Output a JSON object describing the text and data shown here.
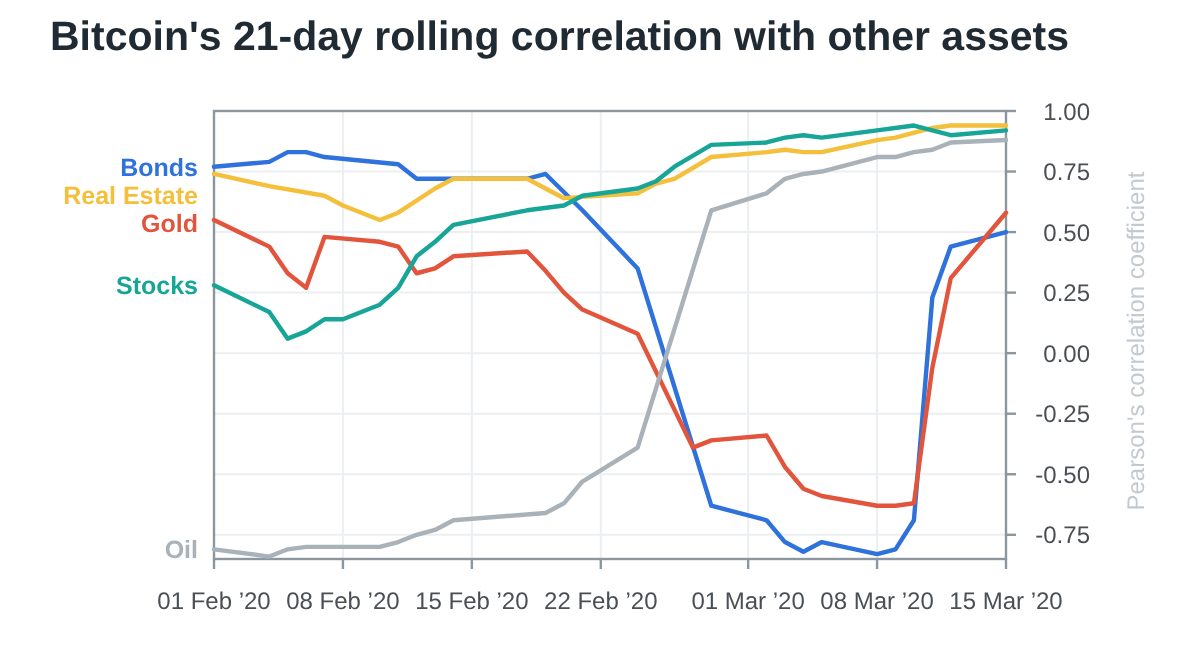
{
  "chart_data": {
    "type": "line",
    "title": "Bitcoin's 21-day rolling correlation with other assets",
    "ylabel": "Pearson's correlation coefficient",
    "xlim": [
      "2020-02-01",
      "2020-03-15"
    ],
    "xticks": [
      {
        "value": "2020-02-01",
        "label": "01 Feb ’20"
      },
      {
        "value": "2020-02-08",
        "label": "08 Feb ’20"
      },
      {
        "value": "2020-02-15",
        "label": "15 Feb ’20"
      },
      {
        "value": "2020-02-22",
        "label": "22 Feb ’20"
      },
      {
        "value": "2020-03-01",
        "label": "01 Mar ’20"
      },
      {
        "value": "2020-03-08",
        "label": "08 Mar ’20"
      },
      {
        "value": "2020-03-15",
        "label": "15 Mar ’20"
      }
    ],
    "ylim": [
      -0.85,
      1
    ],
    "yticks": [
      {
        "value": 1,
        "label": "1.00"
      },
      {
        "value": 0.75,
        "label": "0.75"
      },
      {
        "value": 0.5,
        "label": "0.50"
      },
      {
        "value": 0.25,
        "label": "0.25"
      },
      {
        "value": 0,
        "label": "0.00"
      },
      {
        "value": -0.25,
        "label": "-0.25"
      },
      {
        "value": -0.5,
        "label": "-0.50"
      },
      {
        "value": -0.75,
        "label": "-0.75"
      }
    ],
    "grid": true,
    "series": [
      {
        "name": "Bonds",
        "color": "#2f72dc",
        "x": [
          "2020-02-01",
          "2020-02-04",
          "2020-02-05",
          "2020-02-06",
          "2020-02-07",
          "2020-02-11",
          "2020-02-12",
          "2020-02-18",
          "2020-02-19",
          "2020-02-21",
          "2020-02-24",
          "2020-02-28",
          "2020-03-02",
          "2020-03-03",
          "2020-03-04",
          "2020-03-05",
          "2020-03-08",
          "2020-03-09",
          "2020-03-10",
          "2020-03-11",
          "2020-03-12",
          "2020-03-15"
        ],
        "values": [
          0.77,
          0.79,
          0.83,
          0.83,
          0.81,
          0.78,
          0.72,
          0.72,
          0.74,
          0.59,
          0.35,
          -0.63,
          -0.69,
          -0.78,
          -0.82,
          -0.78,
          -0.83,
          -0.81,
          -0.69,
          0.23,
          0.44,
          0.5
        ]
      },
      {
        "name": "Real Estate",
        "color": "#f4bf3a",
        "x": [
          "2020-02-01",
          "2020-02-04",
          "2020-02-07",
          "2020-02-08",
          "2020-02-10",
          "2020-02-11",
          "2020-02-13",
          "2020-02-14",
          "2020-02-18",
          "2020-02-20",
          "2020-02-24",
          "2020-02-25",
          "2020-02-26",
          "2020-02-28",
          "2020-03-02",
          "2020-03-03",
          "2020-03-04",
          "2020-03-05",
          "2020-03-08",
          "2020-03-09",
          "2020-03-11",
          "2020-03-12",
          "2020-03-15"
        ],
        "values": [
          0.74,
          0.69,
          0.65,
          0.61,
          0.55,
          0.58,
          0.68,
          0.72,
          0.72,
          0.64,
          0.66,
          0.7,
          0.72,
          0.81,
          0.83,
          0.84,
          0.83,
          0.83,
          0.88,
          0.89,
          0.93,
          0.94,
          0.94
        ]
      },
      {
        "name": "Gold",
        "color": "#e2553c",
        "x": [
          "2020-02-01",
          "2020-02-04",
          "2020-02-05",
          "2020-02-06",
          "2020-02-07",
          "2020-02-10",
          "2020-02-11",
          "2020-02-12",
          "2020-02-13",
          "2020-02-14",
          "2020-02-18",
          "2020-02-19",
          "2020-02-20",
          "2020-02-21",
          "2020-02-24",
          "2020-02-27",
          "2020-02-28",
          "2020-03-02",
          "2020-03-03",
          "2020-03-04",
          "2020-03-05",
          "2020-03-08",
          "2020-03-09",
          "2020-03-10",
          "2020-03-11",
          "2020-03-12",
          "2020-03-15"
        ],
        "values": [
          0.55,
          0.44,
          0.33,
          0.27,
          0.48,
          0.46,
          0.44,
          0.33,
          0.35,
          0.4,
          0.42,
          0.34,
          0.25,
          0.18,
          0.08,
          -0.39,
          -0.36,
          -0.34,
          -0.47,
          -0.56,
          -0.59,
          -0.63,
          -0.63,
          -0.62,
          -0.06,
          0.31,
          0.58
        ]
      },
      {
        "name": "Stocks",
        "color": "#17a598",
        "x": [
          "2020-02-01",
          "2020-02-04",
          "2020-02-05",
          "2020-02-06",
          "2020-02-07",
          "2020-02-08",
          "2020-02-10",
          "2020-02-11",
          "2020-02-12",
          "2020-02-13",
          "2020-02-14",
          "2020-02-18",
          "2020-02-20",
          "2020-02-21",
          "2020-02-24",
          "2020-02-25",
          "2020-02-26",
          "2020-02-28",
          "2020-03-02",
          "2020-03-03",
          "2020-03-04",
          "2020-03-05",
          "2020-03-08",
          "2020-03-10",
          "2020-03-11",
          "2020-03-12",
          "2020-03-15"
        ],
        "values": [
          0.28,
          0.17,
          0.06,
          0.09,
          0.14,
          0.14,
          0.2,
          0.27,
          0.4,
          0.46,
          0.53,
          0.59,
          0.61,
          0.65,
          0.68,
          0.71,
          0.77,
          0.86,
          0.87,
          0.89,
          0.9,
          0.89,
          0.92,
          0.94,
          0.92,
          0.9,
          0.92
        ]
      },
      {
        "name": "Oil",
        "color": "#a9b2b8",
        "x": [
          "2020-02-01",
          "2020-02-04",
          "2020-02-05",
          "2020-02-06",
          "2020-02-10",
          "2020-02-11",
          "2020-02-12",
          "2020-02-13",
          "2020-02-14",
          "2020-02-19",
          "2020-02-20",
          "2020-02-21",
          "2020-02-24",
          "2020-02-28",
          "2020-03-02",
          "2020-03-03",
          "2020-03-04",
          "2020-03-05",
          "2020-03-08",
          "2020-03-09",
          "2020-03-10",
          "2020-03-11",
          "2020-03-12",
          "2020-03-15"
        ],
        "values": [
          -0.81,
          -0.84,
          -0.81,
          -0.8,
          -0.8,
          -0.78,
          -0.75,
          -0.73,
          -0.69,
          -0.66,
          -0.62,
          -0.53,
          -0.39,
          0.59,
          0.66,
          0.72,
          0.74,
          0.75,
          0.81,
          0.81,
          0.83,
          0.84,
          0.87,
          0.88
        ]
      }
    ]
  }
}
